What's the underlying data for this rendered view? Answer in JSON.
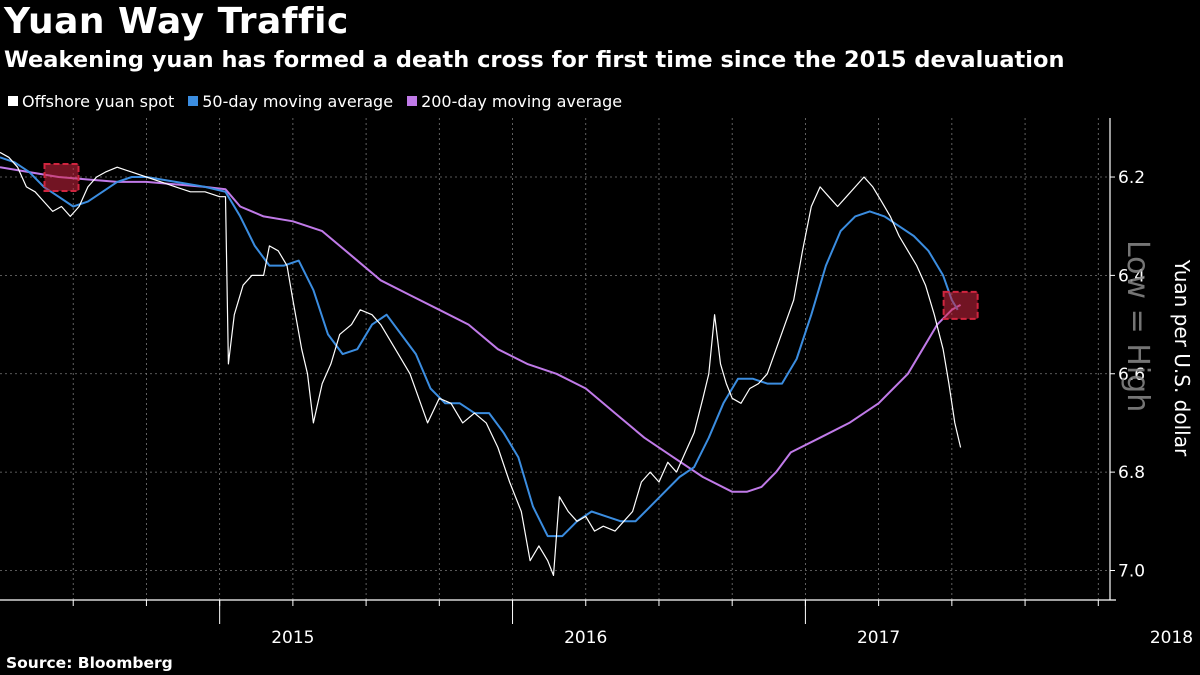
{
  "header": {
    "title": "Yuan Way Traffic",
    "subtitle": "Weakening yuan has formed a death cross for first time since the 2015 devaluation"
  },
  "source": "Source: Bloomberg",
  "colors": {
    "spot": "#ffffff",
    "ma50": "#3b8de0",
    "ma200": "#c07ae8",
    "marker": "#d0253f",
    "grid": "#777777",
    "background": "#000000"
  },
  "watermark": "Low = High",
  "chart_data": {
    "type": "line",
    "title": "Yuan Way Traffic",
    "ylabel": "Yuan per U.S. dollar",
    "y_inverted": true,
    "ylim": [
      6.08,
      7.06
    ],
    "yticks": [
      6.2,
      6.4,
      6.6,
      6.8,
      7.0
    ],
    "ytick_labels": [
      "6.2",
      "6.4",
      "6.6",
      "6.8",
      "7.0"
    ],
    "xlim": [
      2014.5,
      2018.29
    ],
    "xticks": [
      {
        "x": 2015.5,
        "label": "2015"
      },
      {
        "x": 2016.5,
        "label": "2016"
      },
      {
        "x": 2017.5,
        "label": "2017"
      },
      {
        "x": 2018.5,
        "label": "2018"
      }
    ],
    "grid": true,
    "legend_position": "top-left",
    "series": [
      {
        "name": "Offshore yuan spot",
        "color": "#ffffff",
        "points": [
          [
            2014.5,
            6.15
          ],
          [
            2014.53,
            6.16
          ],
          [
            2014.56,
            6.18
          ],
          [
            2014.59,
            6.22
          ],
          [
            2014.62,
            6.23
          ],
          [
            2014.65,
            6.25
          ],
          [
            2014.68,
            6.27
          ],
          [
            2014.71,
            6.26
          ],
          [
            2014.74,
            6.28
          ],
          [
            2014.77,
            6.26
          ],
          [
            2014.8,
            6.22
          ],
          [
            2014.83,
            6.2
          ],
          [
            2014.86,
            6.19
          ],
          [
            2014.9,
            6.18
          ],
          [
            2014.95,
            6.19
          ],
          [
            2015.0,
            6.2
          ],
          [
            2015.05,
            6.21
          ],
          [
            2015.1,
            6.22
          ],
          [
            2015.15,
            6.23
          ],
          [
            2015.2,
            6.23
          ],
          [
            2015.25,
            6.24
          ],
          [
            2015.27,
            6.24
          ],
          [
            2015.28,
            6.58
          ],
          [
            2015.3,
            6.48
          ],
          [
            2015.33,
            6.42
          ],
          [
            2015.36,
            6.4
          ],
          [
            2015.4,
            6.4
          ],
          [
            2015.42,
            6.34
          ],
          [
            2015.45,
            6.35
          ],
          [
            2015.48,
            6.38
          ],
          [
            2015.5,
            6.45
          ],
          [
            2015.53,
            6.55
          ],
          [
            2015.55,
            6.6
          ],
          [
            2015.57,
            6.7
          ],
          [
            2015.6,
            6.62
          ],
          [
            2015.63,
            6.58
          ],
          [
            2015.66,
            6.52
          ],
          [
            2015.7,
            6.5
          ],
          [
            2015.73,
            6.47
          ],
          [
            2015.77,
            6.48
          ],
          [
            2015.8,
            6.5
          ],
          [
            2015.83,
            6.53
          ],
          [
            2015.86,
            6.56
          ],
          [
            2015.9,
            6.6
          ],
          [
            2015.93,
            6.65
          ],
          [
            2015.96,
            6.7
          ],
          [
            2016.0,
            6.65
          ],
          [
            2016.04,
            6.66
          ],
          [
            2016.08,
            6.7
          ],
          [
            2016.12,
            6.68
          ],
          [
            2016.16,
            6.7
          ],
          [
            2016.2,
            6.75
          ],
          [
            2016.24,
            6.82
          ],
          [
            2016.28,
            6.88
          ],
          [
            2016.31,
            6.98
          ],
          [
            2016.34,
            6.95
          ],
          [
            2016.37,
            6.98
          ],
          [
            2016.39,
            7.01
          ],
          [
            2016.41,
            6.85
          ],
          [
            2016.44,
            6.88
          ],
          [
            2016.47,
            6.9
          ],
          [
            2016.5,
            6.89
          ],
          [
            2016.53,
            6.92
          ],
          [
            2016.56,
            6.91
          ],
          [
            2016.6,
            6.92
          ],
          [
            2016.63,
            6.9
          ],
          [
            2016.66,
            6.88
          ],
          [
            2016.69,
            6.82
          ],
          [
            2016.72,
            6.8
          ],
          [
            2016.75,
            6.82
          ],
          [
            2016.78,
            6.78
          ],
          [
            2016.81,
            6.8
          ],
          [
            2016.84,
            6.76
          ],
          [
            2016.87,
            6.72
          ],
          [
            2016.9,
            6.65
          ],
          [
            2016.92,
            6.6
          ],
          [
            2016.94,
            6.48
          ],
          [
            2016.96,
            6.58
          ],
          [
            2016.98,
            6.62
          ],
          [
            2017.0,
            6.65
          ],
          [
            2017.03,
            6.66
          ],
          [
            2017.06,
            6.63
          ],
          [
            2017.09,
            6.62
          ],
          [
            2017.12,
            6.6
          ],
          [
            2017.15,
            6.55
          ],
          [
            2017.18,
            6.5
          ],
          [
            2017.21,
            6.45
          ],
          [
            2017.24,
            6.35
          ],
          [
            2017.27,
            6.26
          ],
          [
            2017.3,
            6.22
          ],
          [
            2017.33,
            6.24
          ],
          [
            2017.36,
            6.26
          ],
          [
            2017.39,
            6.24
          ],
          [
            2017.42,
            6.22
          ],
          [
            2017.45,
            6.2
          ],
          [
            2017.48,
            6.22
          ],
          [
            2017.51,
            6.25
          ],
          [
            2017.54,
            6.28
          ],
          [
            2017.57,
            6.32
          ],
          [
            2017.6,
            6.35
          ],
          [
            2017.63,
            6.38
          ],
          [
            2017.66,
            6.42
          ],
          [
            2017.69,
            6.48
          ],
          [
            2017.72,
            6.55
          ],
          [
            2017.74,
            6.62
          ],
          [
            2017.76,
            6.7
          ],
          [
            2017.78,
            6.75
          ]
        ]
      },
      {
        "name": "50-day moving average",
        "color": "#3b8de0",
        "points": [
          [
            2014.5,
            6.16
          ],
          [
            2014.55,
            6.17
          ],
          [
            2014.6,
            6.19
          ],
          [
            2014.65,
            6.22
          ],
          [
            2014.7,
            6.24
          ],
          [
            2014.75,
            6.26
          ],
          [
            2014.8,
            6.25
          ],
          [
            2014.85,
            6.23
          ],
          [
            2014.9,
            6.21
          ],
          [
            2014.95,
            6.2
          ],
          [
            2015.0,
            6.2
          ],
          [
            2015.1,
            6.21
          ],
          [
            2015.2,
            6.22
          ],
          [
            2015.27,
            6.23
          ],
          [
            2015.32,
            6.28
          ],
          [
            2015.37,
            6.34
          ],
          [
            2015.42,
            6.38
          ],
          [
            2015.47,
            6.38
          ],
          [
            2015.52,
            6.37
          ],
          [
            2015.57,
            6.43
          ],
          [
            2015.62,
            6.52
          ],
          [
            2015.67,
            6.56
          ],
          [
            2015.72,
            6.55
          ],
          [
            2015.77,
            6.5
          ],
          [
            2015.82,
            6.48
          ],
          [
            2015.87,
            6.52
          ],
          [
            2015.92,
            6.56
          ],
          [
            2015.97,
            6.63
          ],
          [
            2016.02,
            6.66
          ],
          [
            2016.07,
            6.66
          ],
          [
            2016.12,
            6.68
          ],
          [
            2016.17,
            6.68
          ],
          [
            2016.22,
            6.72
          ],
          [
            2016.27,
            6.77
          ],
          [
            2016.32,
            6.87
          ],
          [
            2016.37,
            6.93
          ],
          [
            2016.42,
            6.93
          ],
          [
            2016.47,
            6.9
          ],
          [
            2016.52,
            6.88
          ],
          [
            2016.57,
            6.89
          ],
          [
            2016.62,
            6.9
          ],
          [
            2016.67,
            6.9
          ],
          [
            2016.72,
            6.87
          ],
          [
            2016.77,
            6.84
          ],
          [
            2016.82,
            6.81
          ],
          [
            2016.87,
            6.79
          ],
          [
            2016.92,
            6.73
          ],
          [
            2016.97,
            6.66
          ],
          [
            2017.02,
            6.61
          ],
          [
            2017.07,
            6.61
          ],
          [
            2017.12,
            6.62
          ],
          [
            2017.17,
            6.62
          ],
          [
            2017.22,
            6.57
          ],
          [
            2017.27,
            6.48
          ],
          [
            2017.32,
            6.38
          ],
          [
            2017.37,
            6.31
          ],
          [
            2017.42,
            6.28
          ],
          [
            2017.47,
            6.27
          ],
          [
            2017.52,
            6.28
          ],
          [
            2017.57,
            6.3
          ],
          [
            2017.62,
            6.32
          ],
          [
            2017.67,
            6.35
          ],
          [
            2017.72,
            6.4
          ],
          [
            2017.75,
            6.45
          ],
          [
            2017.77,
            6.47
          ]
        ]
      },
      {
        "name": "200-day moving average",
        "color": "#c07ae8",
        "points": [
          [
            2014.5,
            6.18
          ],
          [
            2014.6,
            6.19
          ],
          [
            2014.7,
            6.2
          ],
          [
            2014.8,
            6.205
          ],
          [
            2014.9,
            6.21
          ],
          [
            2015.0,
            6.21
          ],
          [
            2015.1,
            6.215
          ],
          [
            2015.2,
            6.22
          ],
          [
            2015.27,
            6.225
          ],
          [
            2015.32,
            6.26
          ],
          [
            2015.4,
            6.28
          ],
          [
            2015.5,
            6.29
          ],
          [
            2015.6,
            6.31
          ],
          [
            2015.7,
            6.36
          ],
          [
            2015.8,
            6.41
          ],
          [
            2015.9,
            6.44
          ],
          [
            2016.0,
            6.47
          ],
          [
            2016.1,
            6.5
          ],
          [
            2016.2,
            6.55
          ],
          [
            2016.3,
            6.58
          ],
          [
            2016.4,
            6.6
          ],
          [
            2016.5,
            6.63
          ],
          [
            2016.6,
            6.68
          ],
          [
            2016.7,
            6.73
          ],
          [
            2016.8,
            6.77
          ],
          [
            2016.9,
            6.81
          ],
          [
            2017.0,
            6.84
          ],
          [
            2017.05,
            6.84
          ],
          [
            2017.1,
            6.83
          ],
          [
            2017.15,
            6.8
          ],
          [
            2017.2,
            6.76
          ],
          [
            2017.3,
            6.73
          ],
          [
            2017.4,
            6.7
          ],
          [
            2017.5,
            6.66
          ],
          [
            2017.6,
            6.6
          ],
          [
            2017.65,
            6.55
          ],
          [
            2017.7,
            6.5
          ],
          [
            2017.75,
            6.47
          ],
          [
            2017.78,
            6.46
          ]
        ]
      }
    ],
    "annotations": [
      {
        "type": "death-cross-marker",
        "x": 2014.71,
        "y": 6.2
      },
      {
        "type": "death-cross-marker",
        "x": 2017.78,
        "y": 6.46
      }
    ]
  }
}
